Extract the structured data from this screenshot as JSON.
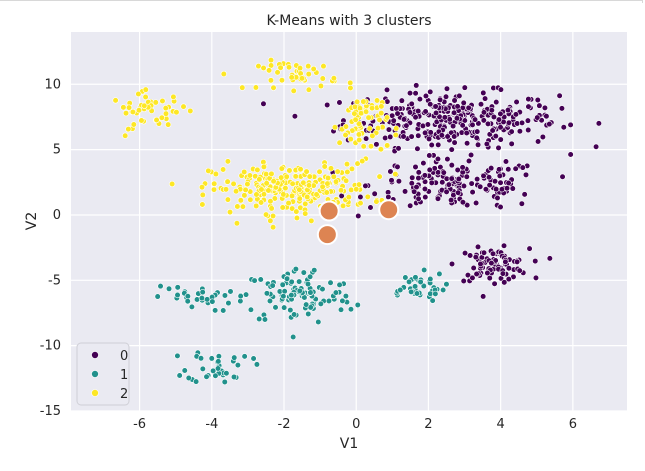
{
  "chart_data": {
    "type": "scatter",
    "title": "K-Means with 3 clusters",
    "xlabel": "V1",
    "ylabel": "V2",
    "xlim": [
      -7.9,
      7.5
    ],
    "ylim": [
      -15,
      14
    ],
    "x_ticks": [
      -6,
      -4,
      -2,
      0,
      2,
      4,
      6
    ],
    "y_ticks": [
      10,
      5,
      0,
      -5,
      -10,
      -15
    ],
    "grid": true,
    "legend_placement": "lower-left",
    "colors": {
      "0": "#440154",
      "1": "#21918c",
      "2": "#fde725",
      "centroid": "#dd8452",
      "background": "#eaeaf2"
    },
    "series": [
      {
        "name": "0",
        "color": "#440154",
        "regions": [
          {
            "cx": 2.6,
            "cy": 7.3,
            "sx": 2.7,
            "sy": 1.9,
            "n": 320
          },
          {
            "cx": 2.8,
            "cy": 2.3,
            "sx": 2.2,
            "sy": 1.7,
            "n": 170
          },
          {
            "cx": 3.8,
            "cy": -3.8,
            "sx": 0.9,
            "sy": 1.1,
            "n": 90
          }
        ]
      },
      {
        "name": "1",
        "color": "#21918c",
        "regions": [
          {
            "cx": -1.6,
            "cy": -6.2,
            "sx": 1.4,
            "sy": 2.0,
            "n": 110
          },
          {
            "cx": -3.8,
            "cy": -11.5,
            "sx": 0.8,
            "sy": 1.2,
            "n": 35
          },
          {
            "cx": 1.6,
            "cy": -5.5,
            "sx": 0.8,
            "sy": 1.0,
            "n": 40
          },
          {
            "cx": -4.5,
            "cy": -6.4,
            "sx": 1.0,
            "sy": 0.9,
            "n": 30
          }
        ]
      },
      {
        "name": "2",
        "color": "#fde725",
        "regions": [
          {
            "cx": -1.8,
            "cy": 2.0,
            "sx": 2.0,
            "sy": 1.7,
            "n": 260
          },
          {
            "cx": -1.6,
            "cy": 10.7,
            "sx": 1.0,
            "sy": 1.0,
            "n": 45
          },
          {
            "cx": -5.7,
            "cy": 8.0,
            "sx": 1.0,
            "sy": 1.2,
            "n": 45
          },
          {
            "cx": 0.2,
            "cy": 7.0,
            "sx": 0.6,
            "sy": 2.2,
            "n": 70
          }
        ]
      }
    ],
    "centroids": [
      {
        "x": -0.75,
        "y": 0.3
      },
      {
        "x": -0.8,
        "y": -1.5
      },
      {
        "x": 0.9,
        "y": 0.4
      }
    ],
    "legend": [
      "0",
      "1",
      "2"
    ]
  }
}
